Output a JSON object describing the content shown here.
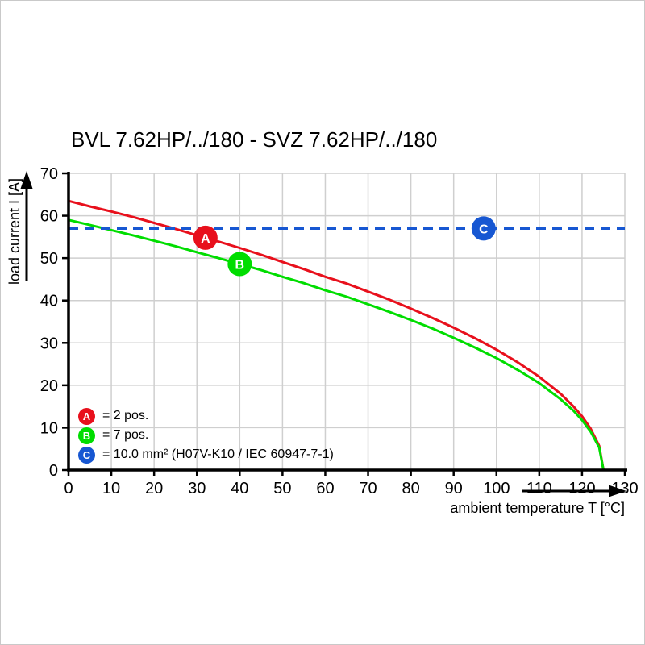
{
  "chart_data": {
    "type": "line",
    "title": "BVL 7.62HP/../180 - SVZ 7.62HP/../180",
    "xlabel": "ambient temperature T [°C]",
    "ylabel": "load current I [A]",
    "xlim": [
      0,
      130
    ],
    "ylim": [
      0,
      70
    ],
    "xticks": [
      0,
      10,
      20,
      30,
      40,
      50,
      60,
      70,
      80,
      90,
      100,
      110,
      120,
      130
    ],
    "yticks": [
      0,
      10,
      20,
      30,
      40,
      50,
      60,
      70
    ],
    "grid": true,
    "grid_color": "#cfcfcf",
    "axis_color": "#000000",
    "series": [
      {
        "name": "A = 2 pos.",
        "color": "#e8101c",
        "style": "solid",
        "points": [
          [
            0,
            63.5
          ],
          [
            5,
            62.2
          ],
          [
            10,
            61.0
          ],
          [
            15,
            59.7
          ],
          [
            20,
            58.3
          ],
          [
            25,
            56.9
          ],
          [
            30,
            55.4
          ],
          [
            35,
            53.9
          ],
          [
            40,
            52.4
          ],
          [
            45,
            50.8
          ],
          [
            50,
            49.1
          ],
          [
            55,
            47.4
          ],
          [
            60,
            45.6
          ],
          [
            65,
            44.0
          ],
          [
            70,
            42.1
          ],
          [
            75,
            40.2
          ],
          [
            80,
            38.1
          ],
          [
            85,
            35.9
          ],
          [
            90,
            33.6
          ],
          [
            95,
            31.1
          ],
          [
            100,
            28.4
          ],
          [
            105,
            25.4
          ],
          [
            110,
            22.0
          ],
          [
            115,
            18.0
          ],
          [
            118,
            15.0
          ],
          [
            120,
            12.7
          ],
          [
            122,
            9.8
          ],
          [
            124,
            5.7
          ],
          [
            125,
            0
          ]
        ]
      },
      {
        "name": "B = 7 pos.",
        "color": "#00dd00",
        "style": "solid",
        "points": [
          [
            0,
            59
          ],
          [
            5,
            57.8
          ],
          [
            10,
            56.6
          ],
          [
            15,
            55.4
          ],
          [
            20,
            54.1
          ],
          [
            25,
            52.8
          ],
          [
            30,
            51.4
          ],
          [
            35,
            50.0
          ],
          [
            40,
            48.6
          ],
          [
            45,
            47.2
          ],
          [
            50,
            45.6
          ],
          [
            55,
            44.1
          ],
          [
            60,
            42.4
          ],
          [
            65,
            40.9
          ],
          [
            70,
            39.1
          ],
          [
            75,
            37.3
          ],
          [
            80,
            35.4
          ],
          [
            85,
            33.4
          ],
          [
            90,
            31.2
          ],
          [
            95,
            28.9
          ],
          [
            100,
            26.4
          ],
          [
            105,
            23.6
          ],
          [
            110,
            20.5
          ],
          [
            115,
            16.7
          ],
          [
            118,
            14.0
          ],
          [
            120,
            11.8
          ],
          [
            122,
            9.1
          ],
          [
            124,
            5.3
          ],
          [
            125,
            0
          ]
        ]
      },
      {
        "name": "C = 10.0 mm² (H07V-K10 / IEC 60947-7-1)",
        "color": "#1757d2",
        "style": "dashed",
        "points": [
          [
            0,
            57
          ],
          [
            130,
            57
          ]
        ]
      }
    ],
    "markers": [
      {
        "letter": "A",
        "color": "#e8101c",
        "x": 32,
        "y": 54.8
      },
      {
        "letter": "B",
        "color": "#00dd00",
        "x": 40,
        "y": 48.6
      },
      {
        "letter": "C",
        "color": "#1757d2",
        "x": 97,
        "y": 57
      }
    ],
    "legend": {
      "position": "lower-left-inside",
      "items": [
        {
          "letter": "A",
          "color": "#e8101c",
          "label": "= 2 pos."
        },
        {
          "letter": "B",
          "color": "#00dd00",
          "label": "= 7 pos."
        },
        {
          "letter": "C",
          "color": "#1757d2",
          "label": "= 10.0 mm² (H07V-K10 / IEC 60947-7-1)"
        }
      ]
    }
  }
}
